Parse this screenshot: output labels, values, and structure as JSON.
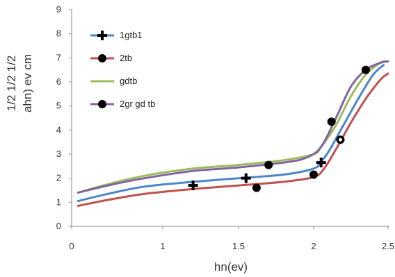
{
  "chart_data": {
    "type": "line",
    "title": "",
    "xlabel": "hn(ev)",
    "ylabel_lines": [
      "1/2   1/2 1/2",
      "ahn)  ev   cm"
    ],
    "xlim": [
      0,
      2.5
    ],
    "ylim": [
      0,
      9
    ],
    "xticks": [
      "0",
      "1",
      "1.5",
      "2",
      "2.5"
    ],
    "yticks": [
      "0",
      "1",
      "2",
      "3",
      "4",
      "5",
      "6",
      "7",
      "8",
      "9"
    ],
    "grid": false,
    "legend_position": "top-left",
    "series": [
      {
        "name": "1gtb1",
        "color": "#4a86c8",
        "marker": "plus",
        "x": [
          0.07,
          0.4,
          0.8,
          1.2,
          1.5,
          1.8,
          2.0,
          2.05,
          2.1,
          2.2,
          2.3,
          2.4,
          2.47
        ],
        "y": [
          1.05,
          1.35,
          1.65,
          1.85,
          2.0,
          2.15,
          2.4,
          2.7,
          3.1,
          4.2,
          5.3,
          6.3,
          6.7
        ],
        "markers": [
          {
            "x": 1.2,
            "y": 1.7
          },
          {
            "x": 1.55,
            "y": 2.0
          },
          {
            "x": 2.05,
            "y": 2.65
          }
        ]
      },
      {
        "name": "2tb",
        "color": "#c0504d",
        "marker": "circle",
        "x": [
          0.07,
          0.4,
          0.8,
          1.2,
          1.5,
          1.8,
          2.0,
          2.07,
          2.15,
          2.25,
          2.35,
          2.45,
          2.5
        ],
        "y": [
          0.85,
          1.1,
          1.35,
          1.55,
          1.7,
          1.85,
          2.05,
          2.4,
          3.2,
          4.3,
          5.3,
          6.1,
          6.35
        ],
        "markers": [
          {
            "x": 1.62,
            "y": 1.6
          },
          {
            "x": 2.0,
            "y": 2.15
          }
        ]
      },
      {
        "name": "gdtb",
        "color": "#9bbb59",
        "marker": "none",
        "x": [
          0.07,
          0.4,
          0.8,
          1.2,
          1.5,
          1.8,
          2.0,
          2.05,
          2.15,
          2.25,
          2.35,
          2.45,
          2.5
        ],
        "y": [
          1.4,
          1.75,
          2.1,
          2.4,
          2.55,
          2.75,
          3.0,
          3.3,
          4.2,
          5.4,
          6.3,
          6.8,
          6.85
        ],
        "markers": []
      },
      {
        "name": "2gr gd tb",
        "color": "#8064a2",
        "marker": "circle",
        "x": [
          0.07,
          0.4,
          0.8,
          1.2,
          1.5,
          1.8,
          1.95,
          2.05,
          2.15,
          2.25,
          2.35,
          2.45,
          2.5
        ],
        "y": [
          1.4,
          1.7,
          2.0,
          2.3,
          2.45,
          2.65,
          2.85,
          3.3,
          4.5,
          5.8,
          6.5,
          6.8,
          6.85
        ],
        "markers": [
          {
            "x": 1.7,
            "y": 2.55
          },
          {
            "x": 2.12,
            "y": 4.35
          },
          {
            "x": 2.18,
            "y": 3.6
          },
          {
            "x": 2.35,
            "y": 6.5
          }
        ]
      }
    ]
  }
}
